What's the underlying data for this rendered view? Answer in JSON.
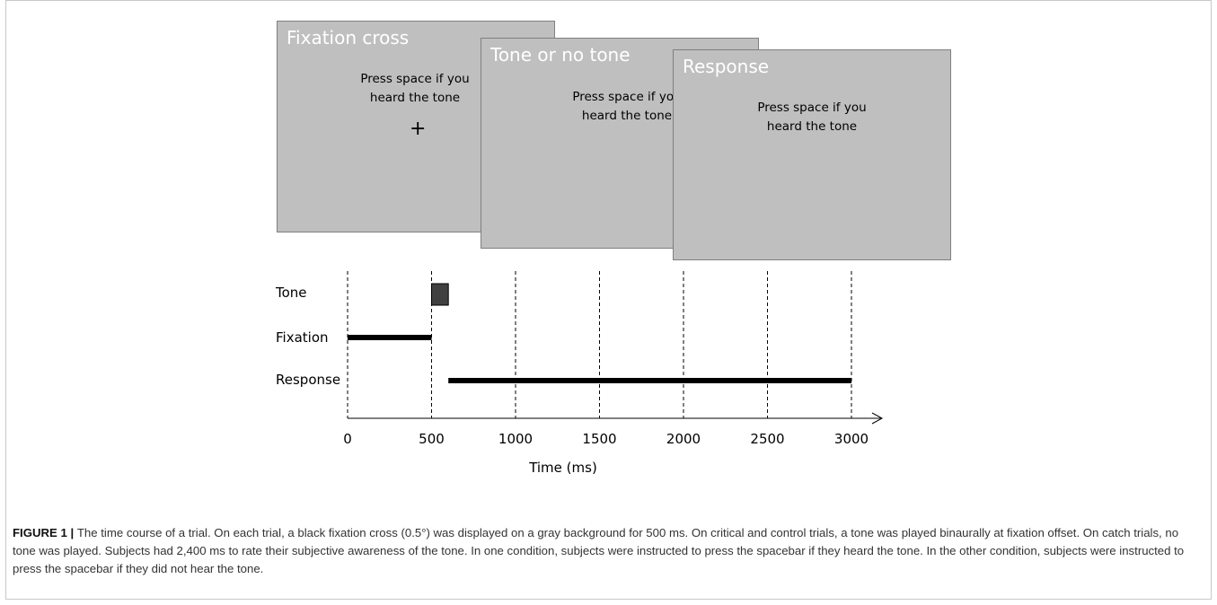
{
  "screens": [
    {
      "title": "Fixation cross",
      "prompt": "Press space if you\nheard the tone",
      "cross": "+"
    },
    {
      "title": "Tone or no tone",
      "prompt": "Press space if you\nheard the tone"
    },
    {
      "title": "Response",
      "prompt": "Press space if you\nheard the tone"
    }
  ],
  "timeline": {
    "rows": [
      {
        "label": "Tone",
        "start": 500,
        "end": 600,
        "style": "box",
        "color": "#404040"
      },
      {
        "label": "Fixation",
        "start": 0,
        "end": 500,
        "style": "bar",
        "color": "#000000"
      },
      {
        "label": "Response",
        "start": 600,
        "end": 3000,
        "style": "bar",
        "color": "#000000"
      }
    ],
    "ticks": [
      "0",
      "500",
      "1000",
      "1500",
      "2000",
      "2500",
      "3000"
    ],
    "tick_values": [
      0,
      500,
      1000,
      1500,
      2000,
      2500,
      3000
    ],
    "xlabel": "Time (ms)",
    "xlim": [
      0,
      3000
    ]
  },
  "caption": {
    "label": "FIGURE 1",
    "separator": " | ",
    "text": "The time course of a trial. On each trial, a black fixation cross (0.5°) was displayed on a gray background for 500 ms. On critical and control trials, a tone was played binaurally at fixation offset. On catch trials, no tone was played. Subjects had 2,400 ms to rate their subjective awareness of the tone. In one condition, subjects were instructed to press the spacebar if they heard the tone. In the other condition, subjects were instructed to press the spacebar if they did not hear the tone."
  }
}
